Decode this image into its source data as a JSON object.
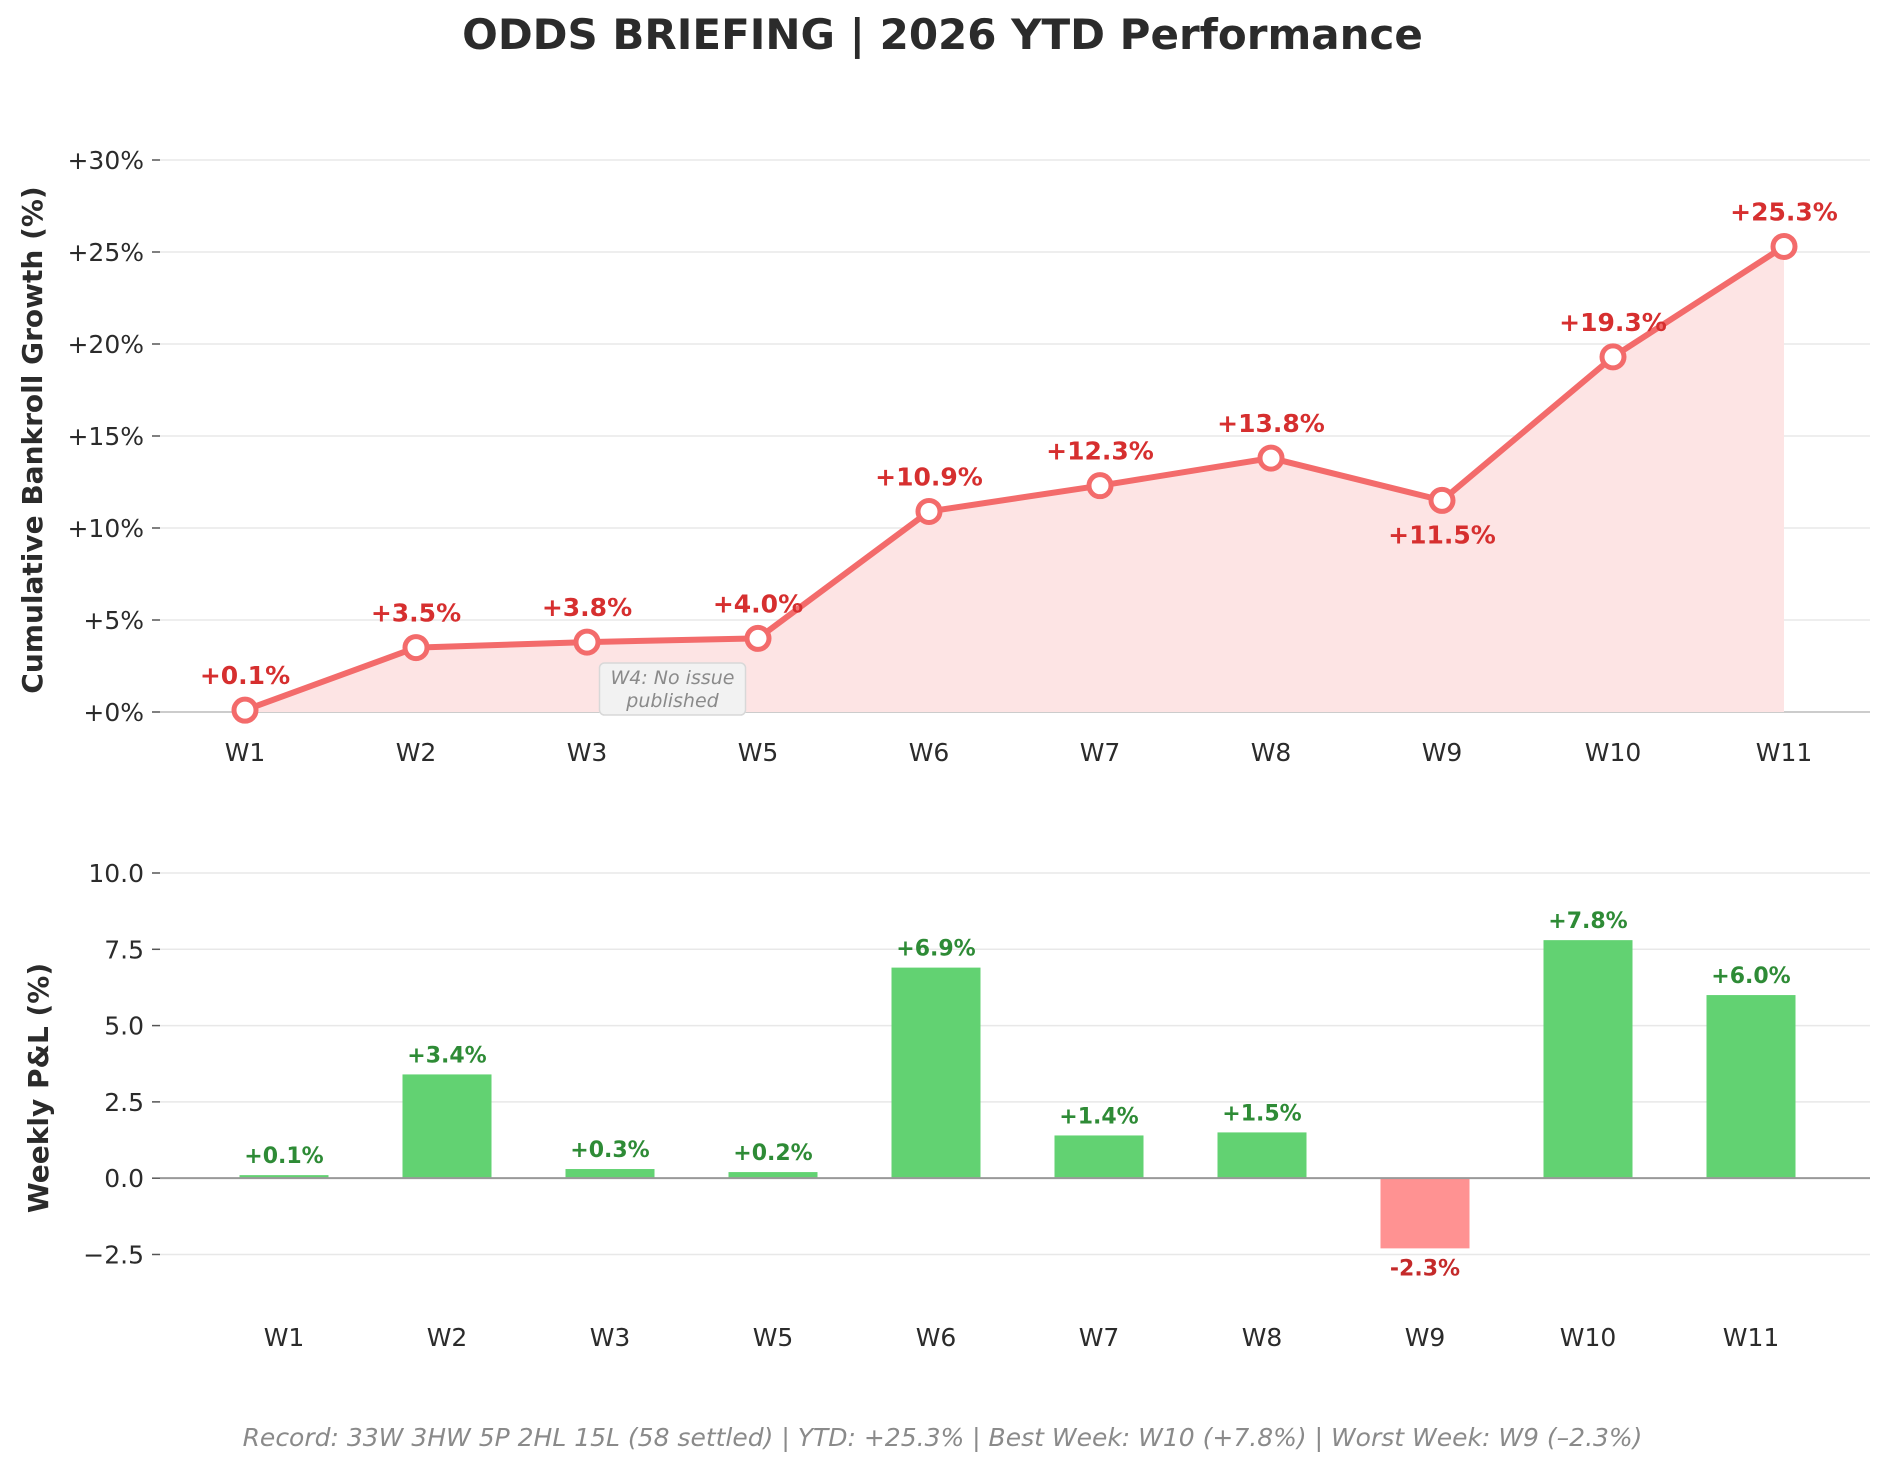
{
  "title": "ODDS BRIEFING  |  2026 YTD Performance",
  "footer": "Record: 33W  3HW  5P  2HL  15L  (58 settled)  |  YTD: +25.3%  |  Best Week: W10 (+7.8%)  |  Worst Week: W9 (–2.3%)",
  "colors": {
    "line": "#f36b6b",
    "area": "#fde4e4",
    "label_red": "#d62f2f",
    "bar_pos": "#62d272",
    "bar_neg": "#ff9292",
    "label_pos": "#2e8b36",
    "label_neg": "#c42a2a",
    "grid": "#e8e8e8",
    "axis": "#999999"
  },
  "chart_data": [
    {
      "type": "line",
      "fill": "area",
      "categories": [
        "W1",
        "W2",
        "W3",
        "W5",
        "W6",
        "W7",
        "W8",
        "W9",
        "W10",
        "W11"
      ],
      "values": [
        0.1,
        3.5,
        3.8,
        4.0,
        10.9,
        12.3,
        13.8,
        11.5,
        19.3,
        25.3
      ],
      "data_labels": [
        "+0.1%",
        "+3.5%",
        "+3.8%",
        "+4.0%",
        "+10.9%",
        "+12.3%",
        "+13.8%",
        "+11.5%",
        "+19.3%",
        "+25.3%"
      ],
      "ylabel": "Cumulative Bankroll Growth (%)",
      "ylim": [
        0,
        30
      ],
      "yticks": [
        0,
        5,
        10,
        15,
        20,
        25,
        30
      ],
      "ytick_labels": [
        "+0%",
        "+5%",
        "+10%",
        "+15%",
        "+20%",
        "+25%",
        "+30%"
      ],
      "grid": true,
      "annotation": {
        "text_lines": [
          "W4: No issue",
          "published"
        ],
        "between": [
          "W3",
          "W5"
        ]
      }
    },
    {
      "type": "bar",
      "categories": [
        "W1",
        "W2",
        "W3",
        "W5",
        "W6",
        "W7",
        "W8",
        "W9",
        "W10",
        "W11"
      ],
      "values": [
        0.1,
        3.4,
        0.3,
        0.2,
        6.9,
        1.4,
        1.5,
        -2.3,
        7.8,
        6.0
      ],
      "data_labels": [
        "+0.1%",
        "+3.4%",
        "+0.3%",
        "+0.2%",
        "+6.9%",
        "+1.4%",
        "+1.5%",
        "-2.3%",
        "+7.8%",
        "+6.0%"
      ],
      "ylabel": "Weekly P&L (%)",
      "ylim": [
        -3.5,
        10
      ],
      "yticks": [
        -2.5,
        0,
        2.5,
        5,
        7.5,
        10
      ],
      "ytick_labels": [
        "−2.5",
        "0.0",
        "2.5",
        "5.0",
        "7.5",
        "10.0"
      ],
      "grid": true
    }
  ]
}
